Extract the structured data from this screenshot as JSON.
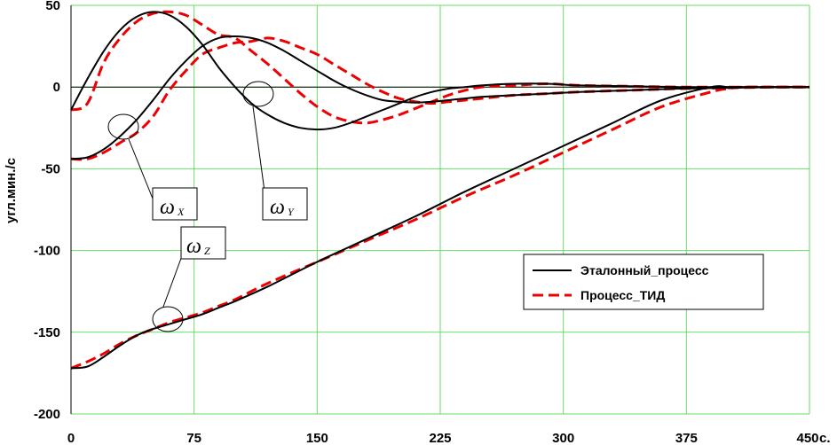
{
  "chart_data": {
    "type": "line",
    "title": "",
    "xlabel": "",
    "ylabel": "угл.мин./с",
    "x_unit_label": "с.",
    "xlim": [
      0,
      450
    ],
    "ylim": [
      -200,
      50
    ],
    "x_ticks": [
      "0",
      "75",
      "150",
      "225",
      "300",
      "375",
      "450"
    ],
    "y_ticks": [
      "50",
      "0",
      "-50",
      "-100",
      "-150",
      "-200"
    ],
    "grid": true,
    "grid_color": "#66dd66",
    "legend_position": "right-lower",
    "legend": [
      "Эталонный_процесс",
      "Процесс_ТИД"
    ],
    "annotations": [
      {
        "symbol": "ω",
        "subscript": "X"
      },
      {
        "symbol": "ω",
        "subscript": "Y"
      },
      {
        "symbol": "ω",
        "subscript": "Z"
      }
    ],
    "series": [
      {
        "name": "Эталонный_процесс",
        "component": "ωX",
        "color": "#000000",
        "style": "solid",
        "x": [
          0,
          10,
          20,
          30,
          40,
          50,
          60,
          70,
          80,
          90,
          100,
          110,
          120,
          130,
          140,
          150,
          160,
          170,
          180,
          190,
          200,
          210,
          220,
          230,
          240,
          250,
          270,
          290,
          310,
          340,
          370,
          400,
          430,
          450
        ],
        "y": [
          -14,
          5,
          22,
          35,
          43,
          46,
          44,
          37,
          26,
          12,
          0,
          -10,
          -17,
          -22,
          -25,
          -26,
          -25,
          -22,
          -18,
          -14,
          -10,
          -6,
          -3,
          -1,
          0,
          1,
          2,
          2,
          1,
          0.5,
          0,
          0,
          0,
          0
        ]
      },
      {
        "name": "Эталонный_процесс",
        "component": "ωY",
        "color": "#000000",
        "style": "solid",
        "x": [
          0,
          10,
          20,
          30,
          40,
          50,
          60,
          70,
          80,
          90,
          100,
          110,
          120,
          130,
          140,
          150,
          160,
          170,
          180,
          190,
          200,
          210,
          220,
          230,
          240,
          250,
          270,
          290,
          310,
          340,
          370,
          400,
          430,
          450
        ],
        "y": [
          -44,
          -43,
          -38,
          -30,
          -20,
          -8,
          5,
          16,
          25,
          30,
          31,
          30,
          27,
          22,
          16,
          10,
          4,
          -1,
          -5,
          -8,
          -9,
          -9.5,
          -9,
          -8,
          -7,
          -6,
          -5,
          -4,
          -3,
          -2,
          -1,
          -0.5,
          0,
          0
        ]
      },
      {
        "name": "Эталонный_процесс",
        "component": "ωZ",
        "color": "#000000",
        "style": "solid",
        "x": [
          0,
          10,
          20,
          30,
          40,
          50,
          60,
          70,
          80,
          90,
          100,
          120,
          150,
          180,
          210,
          240,
          270,
          300,
          330,
          360,
          390,
          400,
          410,
          430,
          450
        ],
        "y": [
          -172,
          -171,
          -165,
          -158,
          -152,
          -148,
          -145,
          -142,
          -139,
          -135,
          -131,
          -122,
          -107,
          -93,
          -79,
          -64,
          -50,
          -36,
          -22,
          -8,
          0,
          0,
          0,
          0,
          0
        ]
      },
      {
        "name": "Процесс_ТИД",
        "component": "ωX",
        "color": "#ee0000",
        "style": "dashed",
        "x": [
          0,
          10,
          20,
          30,
          40,
          50,
          60,
          70,
          80,
          90,
          100,
          110,
          120,
          130,
          140,
          150,
          160,
          170,
          180,
          190,
          200,
          210,
          220,
          230,
          240,
          250,
          270,
          290,
          310,
          340,
          370,
          400,
          430,
          450
        ],
        "y": [
          -14,
          -10,
          15,
          30,
          40,
          45,
          46,
          44,
          38,
          32,
          30,
          22,
          14,
          5,
          -4,
          -12,
          -18,
          -21,
          -22,
          -20,
          -17,
          -13,
          -9,
          -5,
          -2,
          0,
          1,
          2,
          1,
          0.5,
          0,
          0,
          0,
          0
        ]
      },
      {
        "name": "Процесс_ТИД",
        "component": "ωY",
        "color": "#ee0000",
        "style": "dashed",
        "x": [
          0,
          10,
          20,
          30,
          40,
          50,
          60,
          70,
          80,
          90,
          100,
          110,
          120,
          130,
          140,
          150,
          160,
          170,
          180,
          190,
          200,
          210,
          220,
          230,
          240,
          250,
          270,
          290,
          310,
          340,
          370,
          400,
          430,
          450
        ],
        "y": [
          -44,
          -44,
          -40,
          -34,
          -28,
          -18,
          -2,
          10,
          20,
          24,
          27,
          28,
          30,
          28,
          24,
          20,
          14,
          8,
          2,
          -3,
          -7,
          -9,
          -10,
          -9,
          -8,
          -7,
          -5,
          -4,
          -3,
          -2,
          -1,
          -0.5,
          0,
          0
        ]
      },
      {
        "name": "Процесс_ТИД",
        "component": "ωZ",
        "color": "#ee0000",
        "style": "dashed",
        "x": [
          0,
          10,
          20,
          30,
          40,
          50,
          60,
          70,
          80,
          90,
          100,
          120,
          150,
          180,
          210,
          240,
          270,
          300,
          330,
          360,
          390,
          400,
          410,
          430,
          450
        ],
        "y": [
          -172,
          -168,
          -163,
          -157,
          -152,
          -148,
          -144,
          -141,
          -138,
          -134,
          -130,
          -120,
          -107,
          -94,
          -81,
          -67,
          -54,
          -40,
          -26,
          -12,
          -3,
          -1,
          0,
          0,
          0
        ]
      }
    ]
  }
}
